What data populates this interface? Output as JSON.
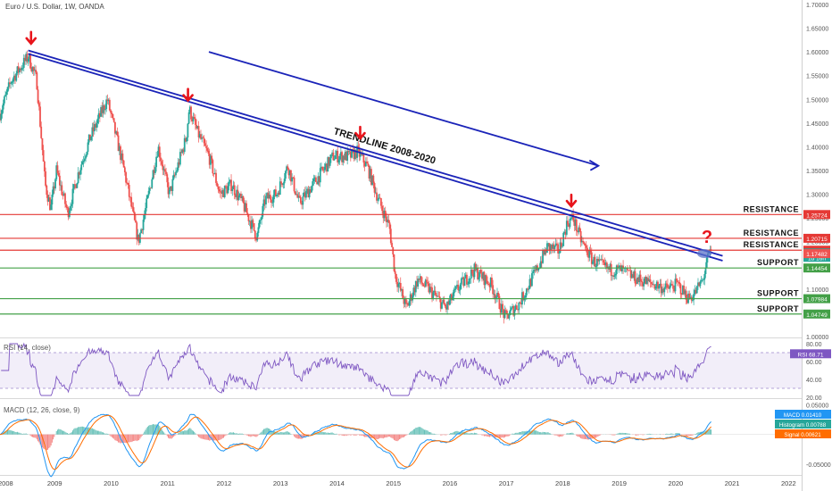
{
  "title": "Euro / U.S. Dollar, 1W, OANDA",
  "rsi_title": "RSI (14, close)",
  "macd_title": "MACD (12, 26, close, 9)",
  "colors": {
    "up": "#26a69a",
    "down": "#ef5350",
    "resistance": "#e53935",
    "support": "#43a047",
    "trendline": "#1a23b8",
    "arrow": "#e8141b",
    "rsi": "#7e57c2",
    "macd": "#2196f3",
    "signal": "#ff6d00",
    "highlight": "#5b74c9"
  },
  "chart_data": [
    {
      "type": "candlestick",
      "title": "Euro / U.S. Dollar, 1W, OANDA",
      "x_ticks": [
        "2008",
        "2009",
        "2010",
        "2011",
        "2012",
        "2013",
        "2014",
        "2015",
        "2016",
        "2017",
        "2018",
        "2019",
        "2020",
        "2021",
        "2022"
      ],
      "y_ticks": [
        "1.70000",
        "1.65000",
        "1.60000",
        "1.55000",
        "1.50000",
        "1.45000",
        "1.40000",
        "1.35000",
        "1.30000",
        "1.25000",
        "1.20000",
        "1.15000",
        "1.10000",
        "1.05000",
        "1.00000"
      ],
      "ylim": [
        1.0,
        1.7
      ],
      "xlim": [
        2008.0,
        2022.2
      ],
      "price_path": [
        [
          2008.0,
          1.47
        ],
        [
          2008.2,
          1.54
        ],
        [
          2008.5,
          1.59
        ],
        [
          2008.65,
          1.54
        ],
        [
          2008.8,
          1.32
        ],
        [
          2008.9,
          1.27
        ],
        [
          2009.0,
          1.35
        ],
        [
          2009.2,
          1.26
        ],
        [
          2009.4,
          1.35
        ],
        [
          2009.6,
          1.42
        ],
        [
          2009.9,
          1.5
        ],
        [
          2010.0,
          1.45
        ],
        [
          2010.2,
          1.35
        ],
        [
          2010.45,
          1.2
        ],
        [
          2010.6,
          1.28
        ],
        [
          2010.8,
          1.4
        ],
        [
          2011.0,
          1.3
        ],
        [
          2011.3,
          1.42
        ],
        [
          2011.35,
          1.48
        ],
        [
          2011.5,
          1.43
        ],
        [
          2011.7,
          1.38
        ],
        [
          2011.9,
          1.3
        ],
        [
          2012.1,
          1.32
        ],
        [
          2012.3,
          1.28
        ],
        [
          2012.55,
          1.21
        ],
        [
          2012.7,
          1.29
        ],
        [
          2012.9,
          1.3
        ],
        [
          2013.1,
          1.36
        ],
        [
          2013.3,
          1.28
        ],
        [
          2013.6,
          1.33
        ],
        [
          2013.9,
          1.38
        ],
        [
          2014.2,
          1.38
        ],
        [
          2014.33,
          1.39
        ],
        [
          2014.5,
          1.36
        ],
        [
          2014.7,
          1.29
        ],
        [
          2014.9,
          1.23
        ],
        [
          2015.0,
          1.13
        ],
        [
          2015.2,
          1.06
        ],
        [
          2015.4,
          1.12
        ],
        [
          2015.6,
          1.1
        ],
        [
          2015.9,
          1.06
        ],
        [
          2016.1,
          1.1
        ],
        [
          2016.4,
          1.14
        ],
        [
          2016.7,
          1.11
        ],
        [
          2016.95,
          1.04
        ],
        [
          2017.2,
          1.07
        ],
        [
          2017.5,
          1.14
        ],
        [
          2017.7,
          1.19
        ],
        [
          2017.9,
          1.18
        ],
        [
          2018.05,
          1.24
        ],
        [
          2018.15,
          1.25
        ],
        [
          2018.3,
          1.2
        ],
        [
          2018.5,
          1.16
        ],
        [
          2018.8,
          1.14
        ],
        [
          2019.0,
          1.14
        ],
        [
          2019.3,
          1.12
        ],
        [
          2019.6,
          1.11
        ],
        [
          2019.8,
          1.1
        ],
        [
          2020.0,
          1.11
        ],
        [
          2020.2,
          1.08
        ],
        [
          2020.3,
          1.09
        ],
        [
          2020.45,
          1.12
        ],
        [
          2020.55,
          1.17
        ],
        [
          2020.6,
          1.18
        ]
      ],
      "annotations": [
        {
          "text": "TRENDLINE 2008-2020"
        },
        {
          "text": "?"
        }
      ],
      "trendlines": [
        {
          "x1": 2008.5,
          "y1": 1.603,
          "x2": 2020.8,
          "y2": 1.17
        },
        {
          "x1": 2008.5,
          "y1": 1.596,
          "x2": 2020.8,
          "y2": 1.16
        },
        {
          "x1": 2011.7,
          "y1": 1.6,
          "x2": 2018.6,
          "y2": 1.36
        }
      ],
      "peak_arrows": [
        {
          "x": 2008.55,
          "y": 1.625
        },
        {
          "x": 2011.33,
          "y": 1.505
        },
        {
          "x": 2014.38,
          "y": 1.425
        },
        {
          "x": 2018.12,
          "y": 1.282
        }
      ],
      "levels": [
        {
          "label": "RESISTANCE",
          "value": 1.25724,
          "tag": "1.25724",
          "kind": "resistance"
        },
        {
          "label": "RESISTANCE",
          "value": 1.20715,
          "tag": "1.20715",
          "kind": "resistance"
        },
        {
          "label": "RESISTANCE",
          "value": 1.1821,
          "tag": "1.18210",
          "kind": "resistance"
        },
        {
          "label": "SUPPORT",
          "value": 1.14454,
          "tag": "1.14454",
          "kind": "support"
        },
        {
          "label": "SUPPORT",
          "value": 1.07984,
          "tag": "1.07984",
          "kind": "support"
        },
        {
          "label": "SUPPORT",
          "value": 1.04749,
          "tag": "1.04749",
          "kind": "support"
        }
      ],
      "extra_tags": [
        {
          "value": 1.1763,
          "text": "1.17630",
          "color": "#26a69a"
        },
        {
          "value": 1.167,
          "text": "1d 16h",
          "color": "#26a69a"
        },
        {
          "value": 1.17482,
          "text": "1.17482",
          "color": "#ef5350"
        }
      ]
    },
    {
      "type": "line",
      "title": "RSI (14, close)",
      "ylim": [
        20,
        85
      ],
      "y_ticks": [
        80,
        60,
        40,
        20
      ],
      "levels": [
        70,
        30
      ],
      "value_tag": {
        "label": "RSI",
        "value": "68.71"
      }
    },
    {
      "type": "line",
      "title": "MACD (12, 26, close, 9)",
      "ylim": [
        -0.065,
        0.058
      ],
      "y_ticks": [
        "0.05000",
        "-0.05000"
      ],
      "value_tags": [
        {
          "label": "MACD",
          "value": "0.01410"
        },
        {
          "label": "Histogram",
          "value": "0.00788"
        },
        {
          "label": "Signal",
          "value": "0.00621"
        }
      ]
    }
  ]
}
